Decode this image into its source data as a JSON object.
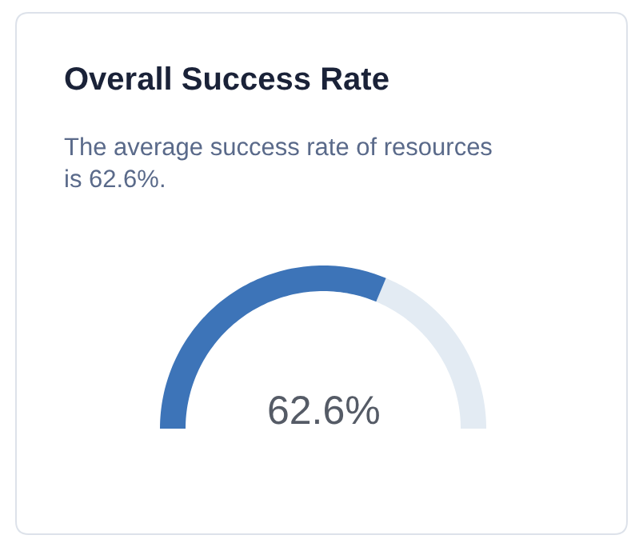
{
  "chart_data": {
    "type": "donut",
    "title": "Overall Success Rate",
    "subtitle": "The average success rate of resources is 62.6%.",
    "categories": [
      null,
      null
    ],
    "values": [
      62.6,
      37.4
    ],
    "colors": [
      "#3d74b8",
      "#e3ebf3"
    ],
    "annotations": [
      "62.6%"
    ]
  }
}
